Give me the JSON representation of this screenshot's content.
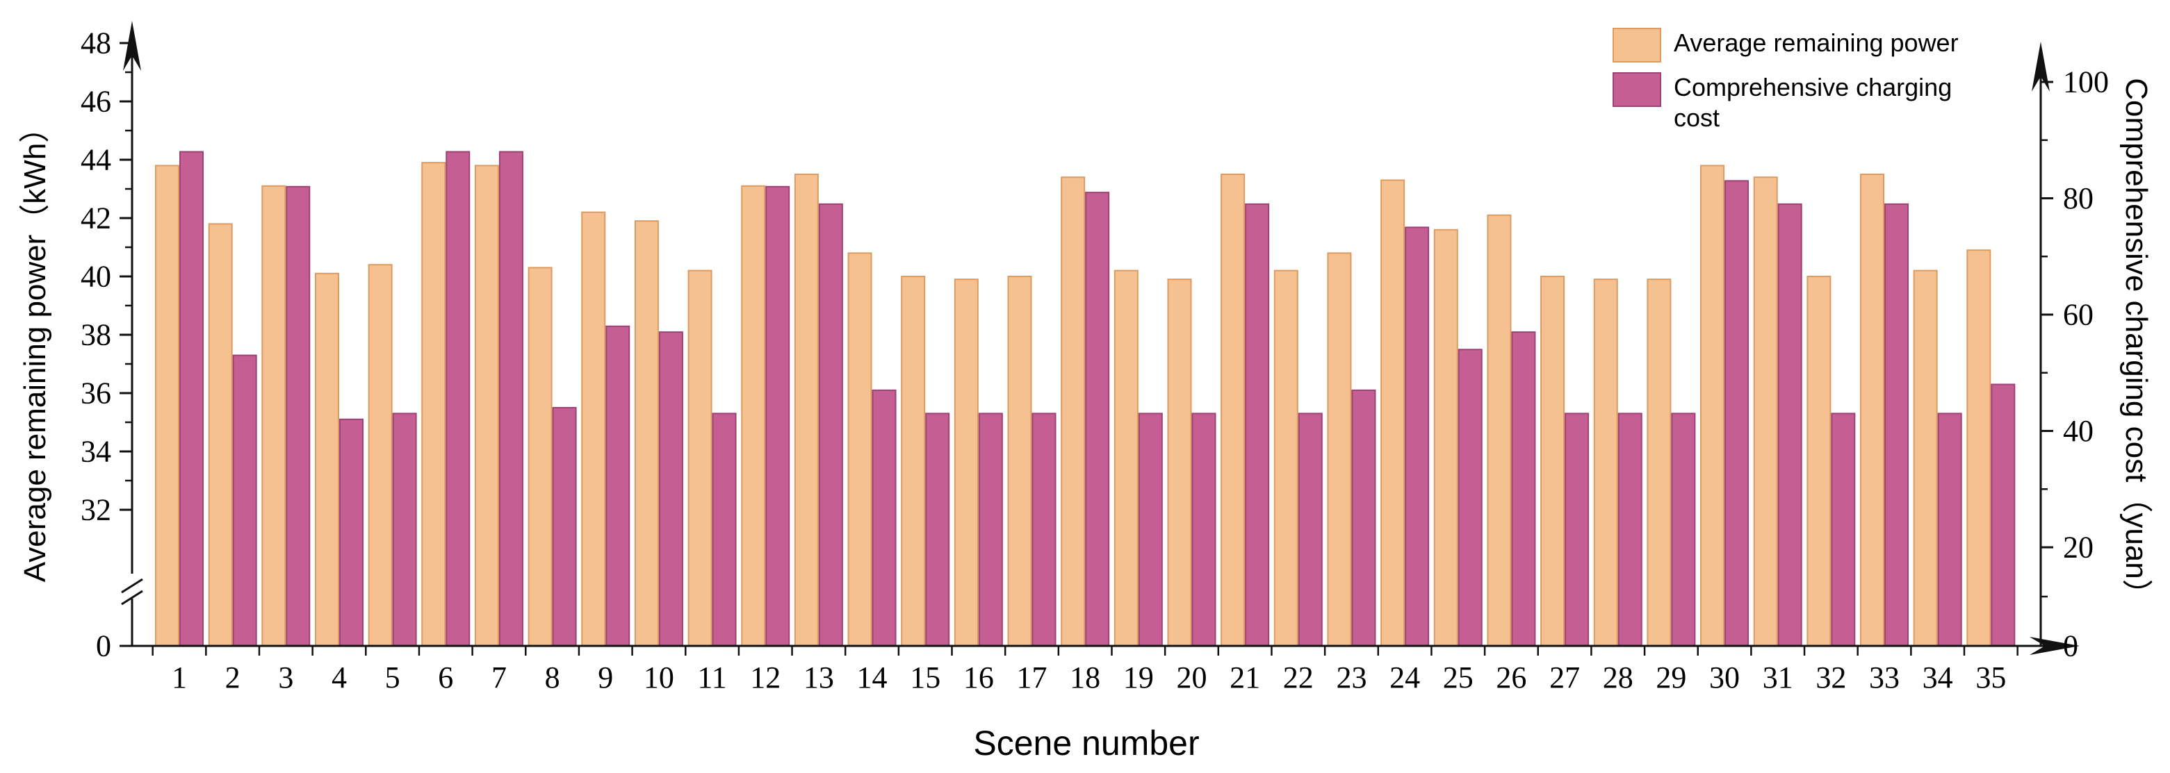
{
  "chart_data": {
    "type": "bar",
    "title": "",
    "xlabel": "Scene number",
    "ylabel_left": "Average remaining power（kWh）",
    "ylabel_right": "Comprehensive charging cost（yuan）",
    "categories": [
      1,
      2,
      3,
      4,
      5,
      6,
      7,
      8,
      9,
      10,
      11,
      12,
      13,
      14,
      15,
      16,
      17,
      18,
      19,
      20,
      21,
      22,
      23,
      24,
      25,
      26,
      27,
      28,
      29,
      30,
      31,
      32,
      33,
      34,
      35
    ],
    "series": [
      {
        "name": "Average remaining power",
        "axis": "left",
        "unit": "kWh",
        "color": "#f6c190",
        "border_color": "#dd9b62",
        "values": [
          43.8,
          41.8,
          43.1,
          40.1,
          40.4,
          43.9,
          43.8,
          40.3,
          42.2,
          41.9,
          40.2,
          43.1,
          43.5,
          40.8,
          40.0,
          39.9,
          40.0,
          43.4,
          40.2,
          39.9,
          43.5,
          40.2,
          40.8,
          43.3,
          41.6,
          42.1,
          40.0,
          39.9,
          39.9,
          43.8,
          43.4,
          40.0,
          43.5,
          40.2,
          40.9
        ]
      },
      {
        "name": "Comprehensive charging cost",
        "axis": "right",
        "unit": "yuan",
        "color": "#c45e93",
        "border_color": "#9e4276",
        "values": [
          88,
          53,
          82,
          42,
          43,
          88,
          88,
          44,
          58,
          57,
          43,
          82,
          79,
          47,
          43,
          43,
          43,
          81,
          43,
          43,
          79,
          43,
          47,
          75,
          54,
          57,
          43,
          43,
          43,
          83,
          79,
          43,
          79,
          43,
          48
        ]
      }
    ],
    "left_axis": {
      "ticks": [
        0,
        32,
        34,
        36,
        38,
        40,
        42,
        44,
        46,
        48
      ],
      "break_between": [
        0,
        32
      ],
      "max": 48
    },
    "right_axis": {
      "ticks": [
        0,
        20,
        40,
        60,
        80,
        100
      ],
      "max": 100
    },
    "legend_position": "top-right",
    "grid": false,
    "axis_color": "#111111"
  }
}
